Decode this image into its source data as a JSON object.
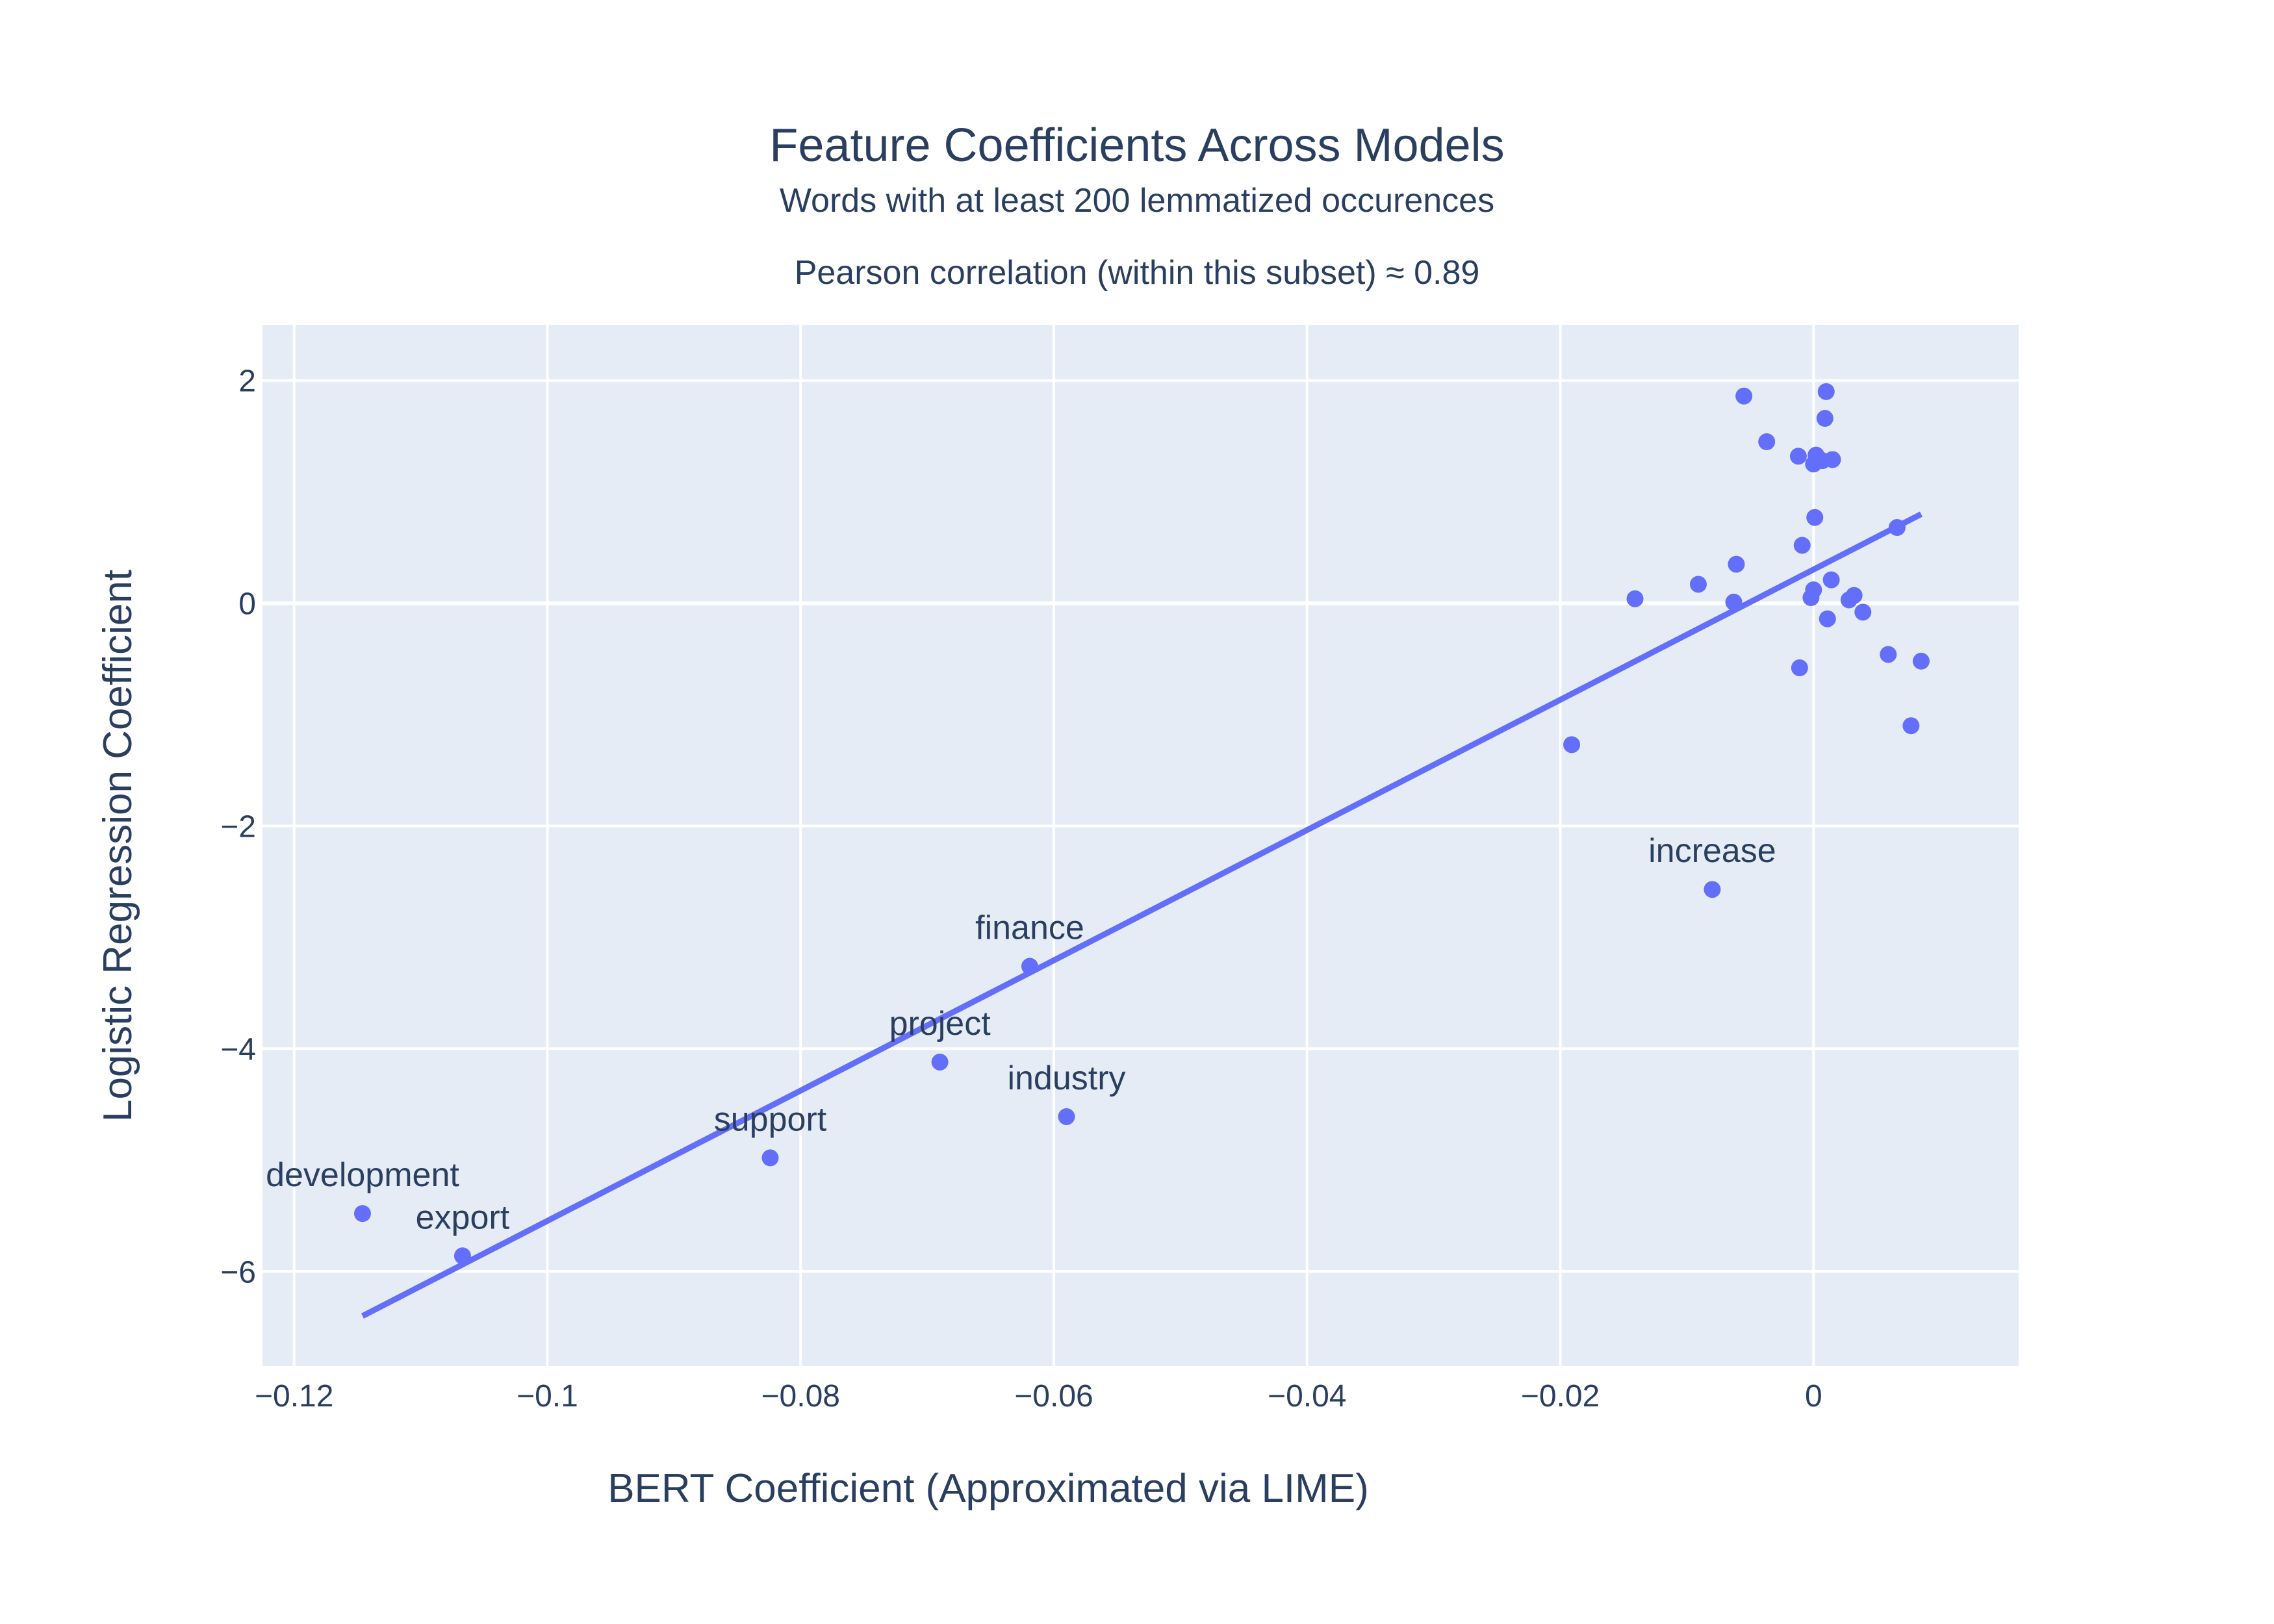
{
  "chart_data": {
    "type": "scatter",
    "title": "Feature Coefficients Across Models",
    "subtitle": "Words with at least 200 lemmatized occurences",
    "annotation": "Pearson correlation (within this subset) ≈ 0.89",
    "xlabel": "BERT Coefficient (Approximated via LIME)",
    "ylabel": "Logistic Regression Coefficient",
    "xlim": [
      -0.1225,
      0.0162
    ],
    "ylim": [
      -6.85,
      2.5
    ],
    "x_ticks": [
      {
        "value": -0.12,
        "label": "−0.12"
      },
      {
        "value": -0.1,
        "label": "−0.1"
      },
      {
        "value": -0.08,
        "label": "−0.08"
      },
      {
        "value": -0.06,
        "label": "−0.06"
      },
      {
        "value": -0.04,
        "label": "−0.04"
      },
      {
        "value": -0.02,
        "label": "−0.02"
      },
      {
        "value": 0,
        "label": "0"
      }
    ],
    "y_ticks": [
      {
        "value": 2,
        "label": "2"
      },
      {
        "value": 0,
        "label": "0"
      },
      {
        "value": -2,
        "label": "−2"
      },
      {
        "value": -4,
        "label": "−4"
      },
      {
        "value": -6,
        "label": "−6"
      }
    ],
    "grid": true,
    "colors": {
      "plot_bg": "#e5ecf6",
      "grid": "#ffffff",
      "marker": "#636efa",
      "line": "#636efa",
      "text": "#2a3f5f"
    },
    "points": [
      {
        "x": -0.1146,
        "y": -5.48,
        "label": "development"
      },
      {
        "x": -0.1067,
        "y": -5.86,
        "label": "export"
      },
      {
        "x": -0.0824,
        "y": -4.98,
        "label": "support"
      },
      {
        "x": -0.069,
        "y": -4.12,
        "label": "project"
      },
      {
        "x": -0.0619,
        "y": -3.26,
        "label": "finance"
      },
      {
        "x": -0.059,
        "y": -4.61,
        "label": "industry"
      },
      {
        "x": -0.008,
        "y": -2.57,
        "label": "increase"
      },
      {
        "x": -0.0191,
        "y": -1.27,
        "label": ""
      },
      {
        "x": -0.0141,
        "y": 0.04,
        "label": ""
      },
      {
        "x": -0.0091,
        "y": 0.17,
        "label": ""
      },
      {
        "x": -0.0061,
        "y": 0.35,
        "label": ""
      },
      {
        "x": -0.0063,
        "y": 0.01,
        "label": ""
      },
      {
        "x": -0.0055,
        "y": 1.86,
        "label": ""
      },
      {
        "x": -0.0037,
        "y": 1.45,
        "label": ""
      },
      {
        "x": -0.0012,
        "y": 1.32,
        "label": ""
      },
      {
        "x": -0.0009,
        "y": 0.52,
        "label": ""
      },
      {
        "x": -0.0011,
        "y": -0.58,
        "label": ""
      },
      {
        "x": -0.0002,
        "y": 0.05,
        "label": ""
      },
      {
        "x": 0.0,
        "y": 0.12,
        "label": ""
      },
      {
        "x": 0.0,
        "y": 1.25,
        "label": ""
      },
      {
        "x": 0.0001,
        "y": 0.77,
        "label": ""
      },
      {
        "x": 0.0002,
        "y": 1.33,
        "label": ""
      },
      {
        "x": 0.0007,
        "y": 1.28,
        "label": ""
      },
      {
        "x": 0.0009,
        "y": 1.66,
        "label": ""
      },
      {
        "x": 0.001,
        "y": 1.9,
        "label": ""
      },
      {
        "x": 0.0011,
        "y": -0.14,
        "label": ""
      },
      {
        "x": 0.0014,
        "y": 0.21,
        "label": ""
      },
      {
        "x": 0.0015,
        "y": 1.29,
        "label": ""
      },
      {
        "x": 0.0028,
        "y": 0.03,
        "label": ""
      },
      {
        "x": 0.0032,
        "y": 0.07,
        "label": ""
      },
      {
        "x": 0.0039,
        "y": -0.08,
        "label": ""
      },
      {
        "x": 0.0059,
        "y": -0.46,
        "label": ""
      },
      {
        "x": 0.0066,
        "y": 0.68,
        "label": ""
      },
      {
        "x": 0.0077,
        "y": -1.1,
        "label": ""
      },
      {
        "x": 0.0085,
        "y": -0.52,
        "label": ""
      }
    ],
    "trendline": {
      "x": [
        -0.1146,
        0.0085
      ],
      "y": [
        -6.4,
        0.8
      ]
    }
  }
}
